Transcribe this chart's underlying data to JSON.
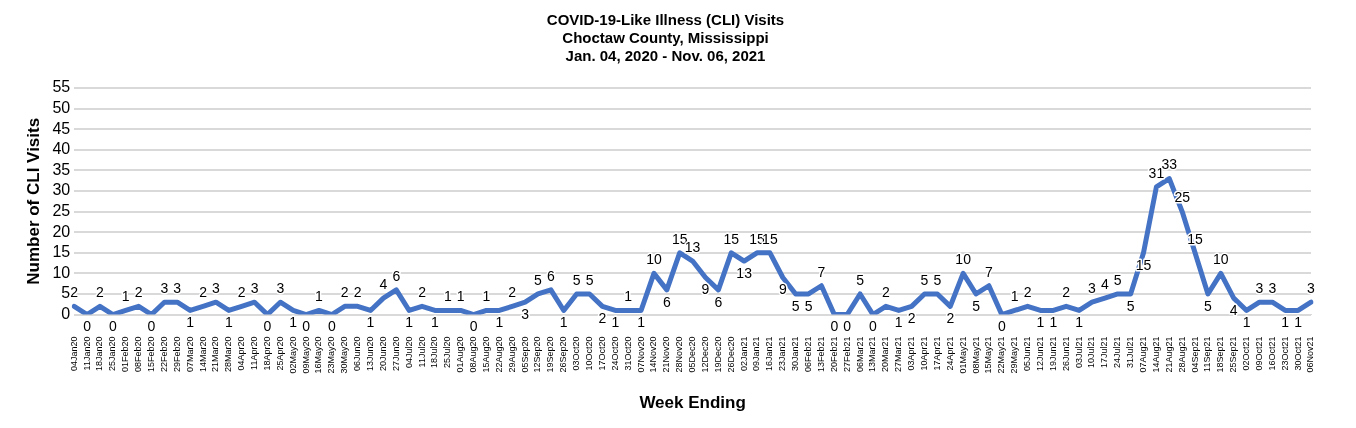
{
  "chart_data": {
    "type": "line",
    "title": "COVID-19-Like Illness (CLI) Visits\nChoctaw County, Mississippi\nJan. 04, 2020 - Nov. 06, 2021",
    "xlabel": "Week Ending",
    "ylabel": "Number of CLI Visits",
    "categories": [
      "04Jan20",
      "11Jan20",
      "18Jan20",
      "25Jan20",
      "01Feb20",
      "08Feb20",
      "15Feb20",
      "22Feb20",
      "29Feb20",
      "07Mar20",
      "14Mar20",
      "21Mar20",
      "28Mar20",
      "04Apr20",
      "11Apr20",
      "18Apr20",
      "25Apr20",
      "02May20",
      "09May20",
      "16May20",
      "23May20",
      "30May20",
      "06Jun20",
      "13Jun20",
      "20Jun20",
      "27Jun20",
      "04Jul20",
      "11Jul20",
      "18Jul20",
      "25Jul20",
      "01Aug20",
      "08Aug20",
      "15Aug20",
      "22Aug20",
      "29Aug20",
      "05Sep20",
      "12Sep20",
      "19Sep20",
      "26Sep20",
      "03Oct20",
      "10Oct20",
      "17Oct20",
      "24Oct20",
      "31Oct20",
      "07Nov20",
      "14Nov20",
      "21Nov20",
      "28Nov20",
      "05Dec20",
      "12Dec20",
      "19Dec20",
      "26Dec20",
      "02Jan21",
      "09Jan21",
      "16Jan21",
      "23Jan21",
      "30Jan21",
      "06Feb21",
      "13Feb21",
      "20Feb21",
      "27Feb21",
      "06Mar21",
      "13Mar21",
      "20Mar21",
      "27Mar21",
      "03Apr21",
      "10Apr21",
      "17Apr21",
      "24Apr21",
      "01May21",
      "08May21",
      "15May21",
      "22May21",
      "29May21",
      "05Jun21",
      "12Jun21",
      "19Jun21",
      "26Jun21",
      "03Jul21",
      "10Jul21",
      "17Jul21",
      "24Jul21",
      "31Jul21",
      "07Aug21",
      "14Aug21",
      "21Aug21",
      "28Aug21",
      "04Sep21",
      "11Sep21",
      "18Sep21",
      "25Sep21",
      "02Oct21",
      "09Oct21",
      "16Oct21",
      "23Oct21",
      "30Oct21",
      "06Nov21"
    ],
    "values": [
      2,
      0,
      2,
      0,
      1,
      2,
      0,
      3,
      3,
      1,
      2,
      3,
      1,
      2,
      3,
      0,
      3,
      1,
      0,
      1,
      0,
      2,
      2,
      1,
      4,
      6,
      1,
      2,
      1,
      1,
      1,
      0,
      1,
      1,
      2,
      3,
      5,
      6,
      1,
      5,
      5,
      2,
      1,
      1,
      1,
      10,
      6,
      15,
      13,
      9,
      6,
      15,
      13,
      15,
      15,
      9,
      5,
      5,
      7,
      0,
      0,
      5,
      0,
      2,
      1,
      2,
      5,
      5,
      2,
      10,
      5,
      7,
      0,
      1,
      2,
      1,
      1,
      2,
      1,
      3,
      4,
      5,
      5,
      15,
      31,
      33,
      25,
      15,
      5,
      10,
      4,
      1,
      3,
      3,
      1,
      1,
      3
    ],
    "color": "#4472c4",
    "ylim": [
      0,
      55
    ],
    "yticks": [
      0,
      5,
      10,
      15,
      20,
      25,
      30,
      35,
      40,
      45,
      50,
      55
    ],
    "grid": "y",
    "legend": false,
    "marker": "none",
    "line_style": "solid",
    "data_labels": true
  }
}
